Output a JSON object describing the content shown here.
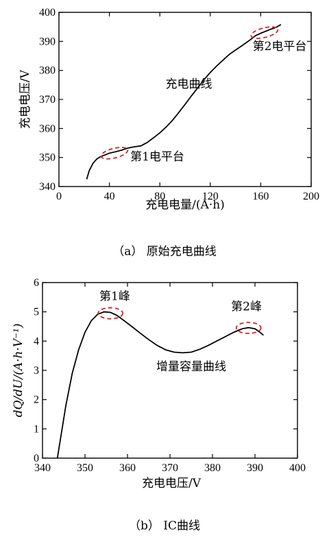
{
  "chart_data": [
    {
      "type": "line",
      "caption": "（a） 原始充电曲线",
      "xlabel": "充电电量/(A·h)",
      "ylabel": "充电电压/V",
      "xlim": [
        0,
        200
      ],
      "ylim": [
        340,
        400
      ],
      "xticks": [
        0,
        40,
        80,
        120,
        160,
        200
      ],
      "yticks": [
        340,
        350,
        360,
        370,
        380,
        390,
        400
      ],
      "grid": false,
      "series": [
        {
          "x": [
            22,
            24,
            27,
            30,
            33,
            36,
            40,
            45,
            50,
            55,
            60,
            65,
            70,
            75,
            80,
            85,
            90,
            95,
            100,
            105,
            110,
            115,
            120,
            125,
            130,
            135,
            140,
            145,
            150,
            153,
            156,
            160,
            164,
            168,
            172,
            176
          ],
          "y": [
            342.5,
            345.5,
            348,
            349.5,
            350.3,
            350.8,
            351.5,
            352,
            352.6,
            353.3,
            353.7,
            354,
            355.2,
            356.8,
            358.5,
            360.5,
            362.8,
            365.5,
            368.3,
            371.2,
            374,
            376.8,
            379.3,
            381.5,
            383.5,
            385.5,
            387,
            388.5,
            390,
            391,
            392,
            392.8,
            393.5,
            394.2,
            394.8,
            395.8
          ]
        }
      ],
      "annotations": [
        {
          "text": "充电曲线",
          "x": 103,
          "y": 374
        },
        {
          "text": "第1电平台",
          "x": 78,
          "y": 349
        },
        {
          "text": "第2电平台",
          "x": 175,
          "y": 387
        }
      ],
      "highlight_ellipses": [
        {
          "cx": 44,
          "cy": 351.5
        },
        {
          "cx": 163,
          "cy": 393
        }
      ]
    },
    {
      "type": "line",
      "caption": "（b） IC曲线",
      "xlabel": "充电电压/V",
      "ylabel": "dQ/dU/(A·h·V⁻¹)",
      "xlim": [
        340,
        400
      ],
      "ylim": [
        0,
        6
      ],
      "xticks": [
        340,
        350,
        360,
        370,
        380,
        390,
        400
      ],
      "yticks": [
        0,
        1,
        2,
        3,
        4,
        5,
        6
      ],
      "grid": false,
      "series": [
        {
          "x": [
            343.5,
            344.5,
            345.5,
            347,
            348.5,
            350,
            351.5,
            353,
            354.5,
            356,
            357.5,
            359,
            361,
            363,
            365,
            367,
            369,
            371,
            373,
            375,
            377,
            379,
            381,
            383,
            385,
            387,
            388.5,
            390,
            391,
            392
          ],
          "y": [
            0,
            0.9,
            1.8,
            2.9,
            3.7,
            4.3,
            4.7,
            4.92,
            5.0,
            4.98,
            4.88,
            4.72,
            4.5,
            4.27,
            4.05,
            3.85,
            3.7,
            3.62,
            3.6,
            3.62,
            3.72,
            3.85,
            4.0,
            4.15,
            4.3,
            4.42,
            4.46,
            4.42,
            4.32,
            4.2
          ]
        }
      ],
      "annotations": [
        {
          "text": "第1峰",
          "x": 357,
          "y": 5.4
        },
        {
          "text": "第2峰",
          "x": 388,
          "y": 5.05
        },
        {
          "text": "增量容量曲线",
          "x": 375,
          "y": 3.0
        }
      ],
      "highlight_ellipses": [
        {
          "cx": 356,
          "cy": 4.95
        },
        {
          "cx": 388.5,
          "cy": 4.45
        }
      ]
    }
  ]
}
